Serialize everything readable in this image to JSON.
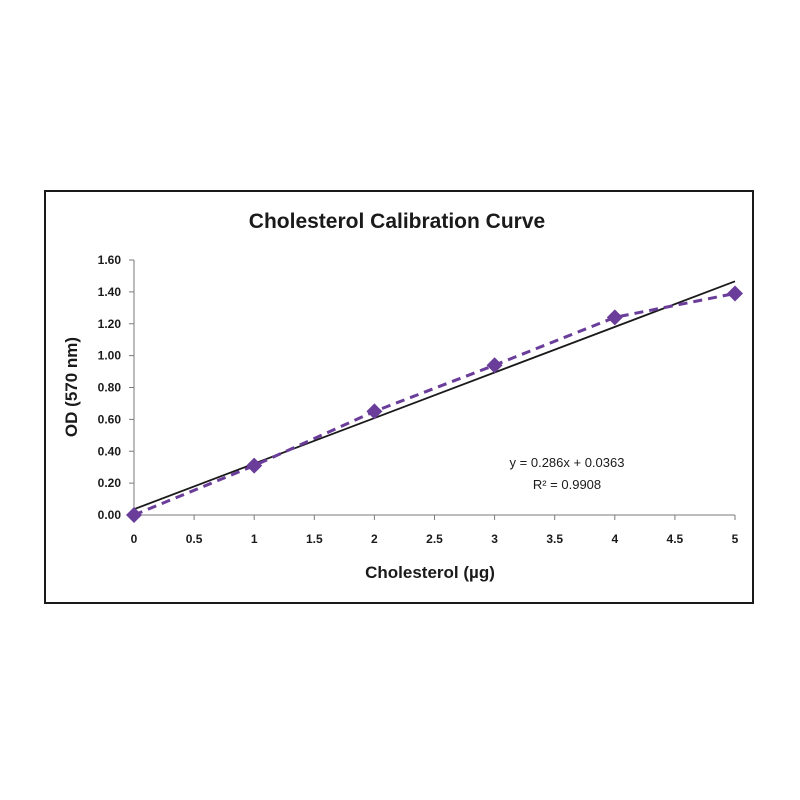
{
  "chart_data": {
    "type": "scatter",
    "title": "Cholesterol Calibration Curve",
    "xlabel": "Cholesterol (µg)",
    "ylabel": "OD (570 nm)",
    "xlim": [
      0,
      5
    ],
    "ylim": [
      0,
      1.6
    ],
    "x_ticks": [
      "0",
      "0.5",
      "1",
      "1.5",
      "2",
      "2.5",
      "3",
      "3.5",
      "4",
      "4.5",
      "5"
    ],
    "y_ticks": [
      "0.00",
      "0.20",
      "0.40",
      "0.60",
      "0.80",
      "1.00",
      "1.20",
      "1.40",
      "1.60"
    ],
    "grid": false,
    "legend": "none",
    "series": [
      {
        "x": [
          0,
          1,
          2,
          3,
          4,
          5
        ],
        "y": [
          0.0,
          0.31,
          0.65,
          0.94,
          1.24,
          1.39
        ],
        "color": "#6a3d9a",
        "marker": "diamond",
        "line": "dashed"
      }
    ],
    "trendline": {
      "slope": 0.286,
      "intercept": 0.0363,
      "color": "#1a1a1a",
      "equation": "y = 0.286x + 0.0363",
      "r_squared": "R² = 0.9908"
    }
  }
}
